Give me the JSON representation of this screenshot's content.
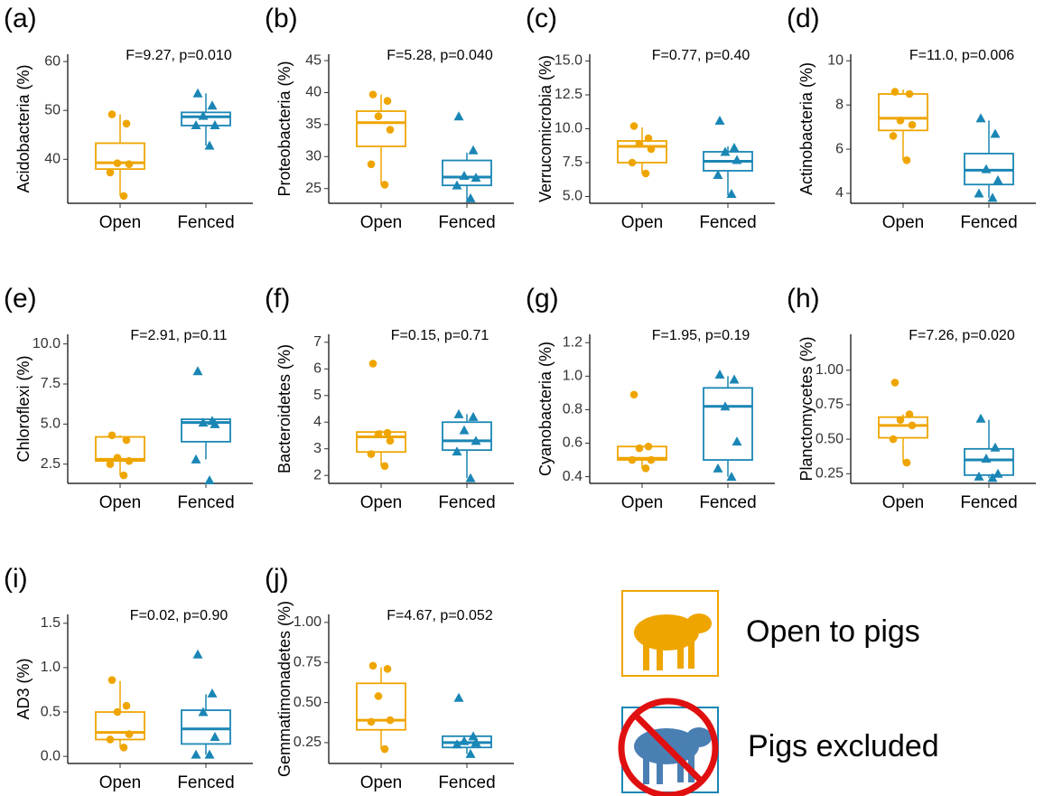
{
  "chart_data": [
    {
      "type": "box",
      "panel": "(a)",
      "annotation": "F=9.27, p=0.010",
      "y_label": "Acidobacteria (%)",
      "categories": [
        "Open",
        "Fenced"
      ],
      "ylim": [
        31,
        61.5
      ],
      "yticks": [
        40,
        50,
        60
      ],
      "groups": [
        {
          "color": "#efa500",
          "marker": "circle",
          "whisker_low": 32.5,
          "q1": 38.0,
          "median": 39.3,
          "q3": 43.3,
          "whisker_high": 49.2,
          "points": [
            49.2,
            47.3,
            39.2,
            39.0,
            37.3,
            32.5
          ]
        },
        {
          "color": "#1a86b5",
          "marker": "triangle",
          "whisker_low": 42.8,
          "q1": 46.9,
          "median": 48.7,
          "q3": 49.6,
          "whisker_high": 53.5,
          "points": [
            53.5,
            51.0,
            48.9,
            47.0,
            47.0,
            42.8
          ]
        }
      ]
    },
    {
      "type": "box",
      "panel": "(b)",
      "annotation": "F=5.28, p=0.040",
      "y_label": "Proteobacteria (%)",
      "categories": [
        "Open",
        "Fenced"
      ],
      "ylim": [
        22.7,
        46
      ],
      "yticks": [
        25,
        30,
        35,
        40,
        45
      ],
      "groups": [
        {
          "color": "#efa500",
          "marker": "circle",
          "whisker_low": 25.6,
          "q1": 31.6,
          "median": 35.3,
          "q3": 37.1,
          "whisker_high": 39.7,
          "points": [
            39.7,
            38.7,
            36.3,
            34.2,
            28.8,
            25.6
          ]
        },
        {
          "color": "#1a86b5",
          "marker": "triangle",
          "whisker_low": 23.2,
          "q1": 25.5,
          "median": 26.8,
          "q3": 29.4,
          "whisker_high": 30.6,
          "points": [
            36.3,
            31.0,
            27.0,
            26.7,
            25.5,
            23.5
          ]
        }
      ]
    },
    {
      "type": "box",
      "panel": "(c)",
      "annotation": "F=0.77, p=0.40",
      "y_label": "Verrucomicrobia (%)",
      "categories": [
        "Open",
        "Fenced"
      ],
      "ylim": [
        4.5,
        15.5
      ],
      "yticks": [
        {
          "value": 5,
          "label": "5.0"
        },
        7.5,
        {
          "value": 10,
          "label": "10.0"
        },
        12.5,
        {
          "value": 15,
          "label": "15.0"
        }
      ],
      "groups": [
        {
          "color": "#efa500",
          "marker": "circle",
          "whisker_low": 6.7,
          "q1": 7.5,
          "median": 8.7,
          "q3": 9.1,
          "whisker_high": 10.1,
          "points": [
            10.2,
            9.3,
            8.9,
            8.5,
            7.5,
            6.7
          ]
        },
        {
          "color": "#1a86b5",
          "marker": "triangle",
          "whisker_low": 5.1,
          "q1": 6.9,
          "median": 7.6,
          "q3": 8.3,
          "whisker_high": 8.7,
          "points": [
            10.6,
            8.6,
            8.3,
            7.7,
            6.6,
            5.2
          ]
        }
      ]
    },
    {
      "type": "box",
      "panel": "(d)",
      "annotation": "F=11.0, p=0.006",
      "y_label": "Actinobacteria (%)",
      "categories": [
        "Open",
        "Fenced"
      ],
      "ylim": [
        3.55,
        10.3
      ],
      "yticks": [
        4,
        6,
        8,
        10
      ],
      "groups": [
        {
          "color": "#efa500",
          "marker": "circle",
          "whisker_low": 5.5,
          "q1": 6.85,
          "median": 7.4,
          "q3": 8.5,
          "whisker_high": 8.7,
          "points": [
            8.6,
            8.5,
            7.3,
            7.1,
            6.6,
            5.5
          ]
        },
        {
          "color": "#1a86b5",
          "marker": "triangle",
          "whisker_low": 3.8,
          "q1": 4.4,
          "median": 5.05,
          "q3": 5.8,
          "whisker_high": 7.3,
          "points": [
            7.4,
            6.7,
            5.1,
            4.6,
            4.0,
            3.8
          ]
        }
      ]
    },
    {
      "type": "box",
      "panel": "(e)",
      "annotation": "F=2.91, p=0.11",
      "y_label": "Chloroflexi (%)",
      "categories": [
        "Open",
        "Fenced"
      ],
      "ylim": [
        1.3,
        10.6
      ],
      "yticks": [
        2.5,
        {
          "value": 5,
          "label": "5.0"
        },
        7.5,
        {
          "value": 10,
          "label": "10.0"
        }
      ],
      "groups": [
        {
          "color": "#efa500",
          "marker": "circle",
          "whisker_low": 1.8,
          "q1": 2.7,
          "median": 2.8,
          "q3": 4.2,
          "whisker_high": 4.3,
          "points": [
            4.3,
            4.0,
            2.9,
            2.7,
            2.5,
            1.8
          ]
        },
        {
          "color": "#1a86b5",
          "marker": "triangle",
          "whisker_low": 2.8,
          "q1": 3.9,
          "median": 5.1,
          "q3": 5.3,
          "whisker_high": 5.3,
          "points": [
            8.3,
            5.2,
            5.1,
            5.0,
            2.8,
            1.5
          ]
        }
      ]
    },
    {
      "type": "box",
      "panel": "(f)",
      "annotation": "F=0.15, p=0.71",
      "y_label": "Bacteroidetes (%)",
      "categories": [
        "Open",
        "Fenced"
      ],
      "ylim": [
        1.7,
        7.3
      ],
      "yticks": [
        2,
        3,
        4,
        5,
        6,
        7
      ],
      "groups": [
        {
          "color": "#efa500",
          "marker": "circle",
          "whisker_low": 2.35,
          "q1": 2.88,
          "median": 3.45,
          "q3": 3.63,
          "whisker_high": 3.7,
          "points": [
            6.2,
            3.6,
            3.55,
            3.3,
            2.8,
            2.35
          ]
        },
        {
          "color": "#1a86b5",
          "marker": "triangle",
          "whisker_low": 1.9,
          "q1": 2.95,
          "median": 3.3,
          "q3": 4.0,
          "whisker_high": 4.3,
          "points": [
            4.3,
            4.2,
            3.7,
            3.3,
            2.9,
            1.9
          ]
        }
      ]
    },
    {
      "type": "box",
      "panel": "(g)",
      "annotation": "F=1.95, p=0.19",
      "y_label": "Cyanobacteria (%)",
      "categories": [
        "Open",
        "Fenced"
      ],
      "ylim": [
        0.36,
        1.25
      ],
      "yticks": [
        0.4,
        0.6,
        0.8,
        {
          "value": 1,
          "label": "1.0"
        },
        1.2
      ],
      "groups": [
        {
          "color": "#efa500",
          "marker": "circle",
          "whisker_low": 0.45,
          "q1": 0.5,
          "median": 0.51,
          "q3": 0.58,
          "whisker_high": 0.58,
          "points": [
            0.89,
            0.58,
            0.57,
            0.5,
            0.5,
            0.45
          ]
        },
        {
          "color": "#1a86b5",
          "marker": "triangle",
          "whisker_low": 0.4,
          "q1": 0.5,
          "median": 0.82,
          "q3": 0.93,
          "whisker_high": 1.0,
          "points": [
            1.01,
            0.98,
            0.82,
            0.61,
            0.45,
            0.4
          ]
        }
      ]
    },
    {
      "type": "box",
      "panel": "(h)",
      "annotation": "F=7.26, p=0.020",
      "y_label": "Planctomycetes (%)",
      "categories": [
        "Open",
        "Fenced"
      ],
      "ylim": [
        0.18,
        1.26
      ],
      "yticks": [
        0.25,
        {
          "value": 0.5,
          "label": "0.50"
        },
        0.75,
        {
          "value": 1,
          "label": "1.00"
        }
      ],
      "groups": [
        {
          "color": "#efa500",
          "marker": "circle",
          "whisker_low": 0.33,
          "q1": 0.51,
          "median": 0.6,
          "q3": 0.66,
          "whisker_high": 0.68,
          "points": [
            0.91,
            0.68,
            0.64,
            0.6,
            0.5,
            0.33
          ]
        },
        {
          "color": "#1a86b5",
          "marker": "triangle",
          "whisker_low": 0.22,
          "q1": 0.24,
          "median": 0.35,
          "q3": 0.43,
          "whisker_high": 0.64,
          "points": [
            0.65,
            0.44,
            0.36,
            0.25,
            0.23,
            0.22
          ]
        }
      ]
    },
    {
      "type": "box",
      "panel": "(i)",
      "annotation": "F=0.02, p=0.90",
      "y_label": "AD3 (%)",
      "categories": [
        "Open",
        "Fenced"
      ],
      "ylim": [
        -0.08,
        1.6
      ],
      "yticks": [
        {
          "value": 0,
          "label": "0.0"
        },
        0.5,
        {
          "value": 1,
          "label": "1.0"
        },
        1.5
      ],
      "groups": [
        {
          "color": "#efa500",
          "marker": "circle",
          "whisker_low": 0.1,
          "q1": 0.19,
          "median": 0.27,
          "q3": 0.5,
          "whisker_high": 0.85,
          "points": [
            0.86,
            0.57,
            0.5,
            0.25,
            0.19,
            0.1
          ]
        },
        {
          "color": "#1a86b5",
          "marker": "triangle",
          "whisker_low": 0.02,
          "q1": 0.14,
          "median": 0.31,
          "q3": 0.52,
          "whisker_high": 0.7,
          "points": [
            1.15,
            0.71,
            0.5,
            0.22,
            0.02,
            0.02
          ]
        }
      ]
    },
    {
      "type": "box",
      "panel": "(j)",
      "annotation": "F=4.67, p=0.052",
      "y_label": "Gemmatimonadetes (%)",
      "categories": [
        "Open",
        "Fenced"
      ],
      "ylim": [
        0.12,
        1.05
      ],
      "yticks": [
        0.25,
        {
          "value": 0.5,
          "label": "0.50"
        },
        0.75,
        {
          "value": 1,
          "label": "1.00"
        }
      ],
      "groups": [
        {
          "color": "#efa500",
          "marker": "circle",
          "whisker_low": 0.21,
          "q1": 0.33,
          "median": 0.39,
          "q3": 0.62,
          "whisker_high": 0.72,
          "points": [
            0.73,
            0.71,
            0.54,
            0.39,
            0.38,
            0.21
          ]
        },
        {
          "color": "#1a86b5",
          "marker": "triangle",
          "whisker_low": 0.18,
          "q1": 0.22,
          "median": 0.25,
          "q3": 0.29,
          "whisker_high": 0.29,
          "points": [
            0.53,
            0.29,
            0.26,
            0.25,
            0.24,
            0.18
          ]
        }
      ]
    }
  ],
  "legend": [
    "Open to pigs",
    "Pigs excluded"
  ]
}
